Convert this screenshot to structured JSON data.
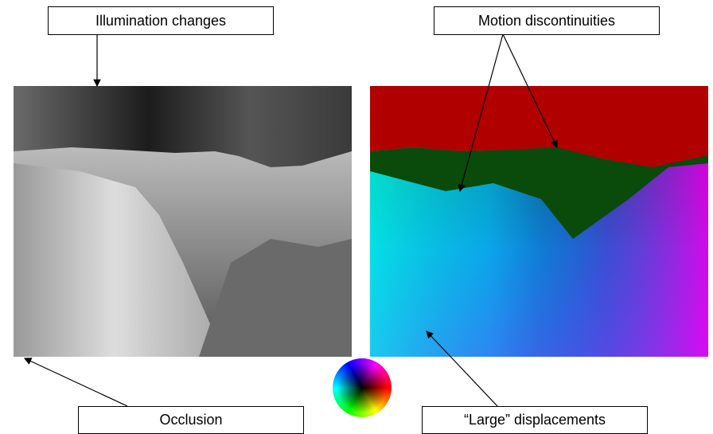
{
  "callouts": {
    "illumination": "Illumination changes",
    "motion": "Motion discontinuities",
    "occlusion": "Occlusion",
    "large": "“Large” displacements"
  }
}
